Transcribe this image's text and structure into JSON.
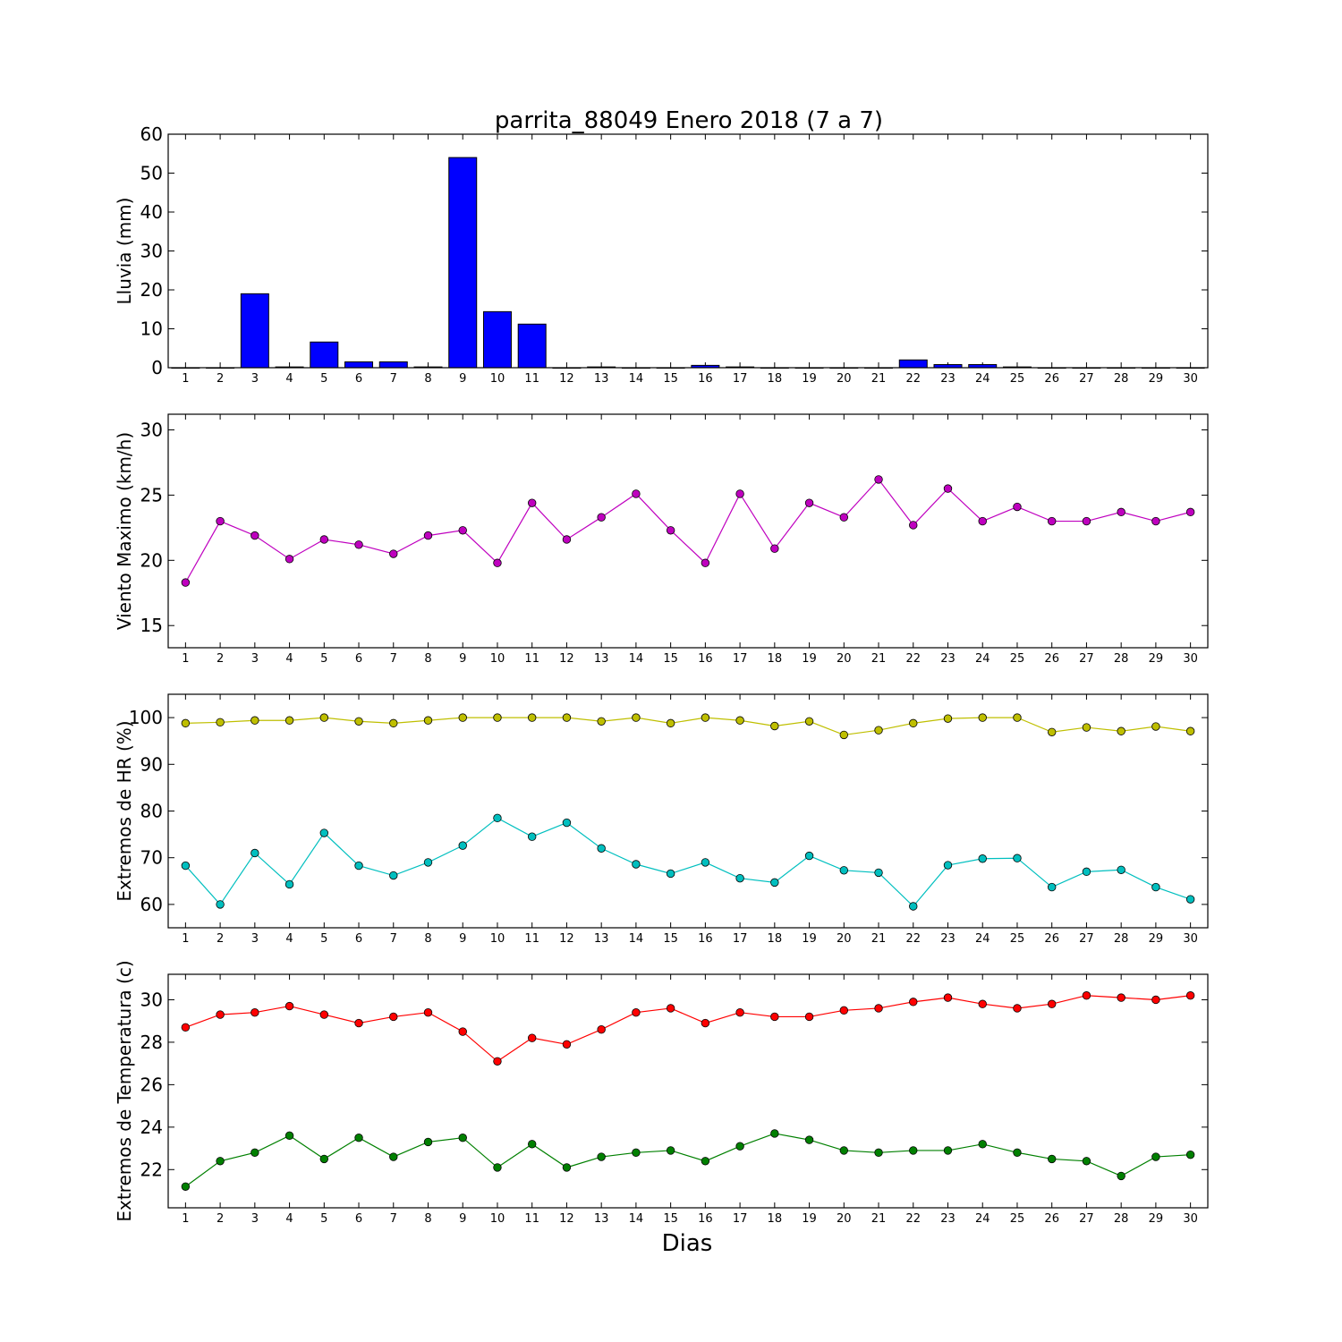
{
  "chart_data": [
    {
      "type": "bar",
      "title": "parrita_88049 Enero 2018  (7 a 7)",
      "ylabel": "Lluvia (mm)",
      "xlabel": "",
      "ylim": [
        0,
        60
      ],
      "yticks": [
        0,
        10,
        20,
        30,
        40,
        50,
        60
      ],
      "categories": [
        "1",
        "2",
        "3",
        "4",
        "5",
        "6",
        "7",
        "8",
        "9",
        "10",
        "11",
        "12",
        "13",
        "14",
        "15",
        "16",
        "17",
        "18",
        "19",
        "20",
        "21",
        "22",
        "23",
        "24",
        "25",
        "26",
        "27",
        "28",
        "29",
        "30"
      ],
      "series": [
        {
          "color": "#0000ff",
          "values": [
            0,
            0,
            19,
            0.2,
            6.6,
            1.5,
            1.5,
            0.2,
            54,
            14.4,
            11.2,
            0,
            0.2,
            0,
            0,
            0.6,
            0.2,
            0,
            0,
            0,
            0,
            2,
            0.8,
            0.8,
            0.2,
            0,
            0,
            0,
            0,
            0
          ]
        }
      ]
    },
    {
      "type": "line",
      "ylabel": "Viento Maximo (km/h)",
      "xlabel": "",
      "ylim": [
        13.3,
        31.2
      ],
      "yticks": [
        15,
        20,
        25,
        30
      ],
      "categories": [
        "1",
        "2",
        "3",
        "4",
        "5",
        "6",
        "7",
        "8",
        "9",
        "10",
        "11",
        "12",
        "13",
        "14",
        "15",
        "16",
        "17",
        "18",
        "19",
        "20",
        "21",
        "22",
        "23",
        "24",
        "25",
        "26",
        "27",
        "28",
        "29",
        "30"
      ],
      "series": [
        {
          "color": "#bf00bf",
          "values": [
            18.3,
            23,
            21.9,
            20.1,
            21.6,
            21.2,
            20.5,
            21.9,
            22.3,
            19.8,
            24.4,
            21.6,
            23.3,
            25.1,
            22.3,
            19.8,
            25.1,
            20.9,
            24.4,
            23.3,
            26.2,
            22.7,
            25.5,
            23,
            24.1,
            23,
            23,
            23.7,
            23,
            23.7
          ]
        }
      ]
    },
    {
      "type": "line",
      "ylabel": "Extremos de HR (%)",
      "xlabel": "",
      "ylim": [
        55,
        105
      ],
      "yticks": [
        60,
        70,
        80,
        90,
        100
      ],
      "categories": [
        "1",
        "2",
        "3",
        "4",
        "5",
        "6",
        "7",
        "8",
        "9",
        "10",
        "11",
        "12",
        "13",
        "14",
        "15",
        "16",
        "17",
        "18",
        "19",
        "20",
        "21",
        "22",
        "23",
        "24",
        "25",
        "26",
        "27",
        "28",
        "29",
        "30"
      ],
      "series": [
        {
          "color": "#bfbf00",
          "values": [
            98.8,
            99,
            99.4,
            99.4,
            100,
            99.2,
            98.8,
            99.4,
            100,
            100,
            100,
            100,
            99.2,
            100,
            98.8,
            100,
            99.4,
            98.2,
            99.2,
            96.3,
            97.3,
            98.8,
            99.8,
            100,
            100,
            96.9,
            97.9,
            97.1,
            98.1,
            97.1
          ]
        },
        {
          "color": "#00bfbf",
          "values": [
            68.3,
            60,
            71,
            64.3,
            75.3,
            68.3,
            66.2,
            69,
            72.6,
            78.5,
            74.5,
            77.5,
            72,
            68.6,
            66.6,
            69,
            65.6,
            64.7,
            70.4,
            67.3,
            66.8,
            59.6,
            68.4,
            69.8,
            69.9,
            63.7,
            67,
            67.4,
            63.7,
            61.1
          ]
        }
      ]
    },
    {
      "type": "line",
      "ylabel": "Extremos de Temperatura (c)",
      "xlabel": "Dias",
      "ylim": [
        20.2,
        31.2
      ],
      "yticks": [
        22,
        24,
        26,
        28,
        30
      ],
      "categories": [
        "1",
        "2",
        "3",
        "4",
        "5",
        "6",
        "7",
        "8",
        "9",
        "10",
        "11",
        "12",
        "13",
        "14",
        "15",
        "16",
        "17",
        "18",
        "19",
        "20",
        "21",
        "22",
        "23",
        "24",
        "25",
        "26",
        "27",
        "28",
        "29",
        "30"
      ],
      "series": [
        {
          "color": "#ff0000",
          "values": [
            28.7,
            29.3,
            29.4,
            29.7,
            29.3,
            28.9,
            29.2,
            29.4,
            28.5,
            27.1,
            28.2,
            27.9,
            28.6,
            29.4,
            29.6,
            28.9,
            29.4,
            29.2,
            29.2,
            29.5,
            29.6,
            29.9,
            30.1,
            29.8,
            29.6,
            29.8,
            30.2,
            30.1,
            30,
            30.2
          ]
        },
        {
          "color": "#008000",
          "values": [
            21.2,
            22.4,
            22.8,
            23.6,
            22.5,
            23.5,
            22.6,
            23.3,
            23.5,
            22.1,
            23.2,
            22.1,
            22.6,
            22.8,
            22.9,
            22.4,
            23.1,
            23.7,
            23.4,
            22.9,
            22.8,
            22.9,
            22.9,
            23.2,
            22.8,
            22.5,
            22.4,
            21.7,
            22.6,
            22.7
          ]
        }
      ]
    }
  ]
}
